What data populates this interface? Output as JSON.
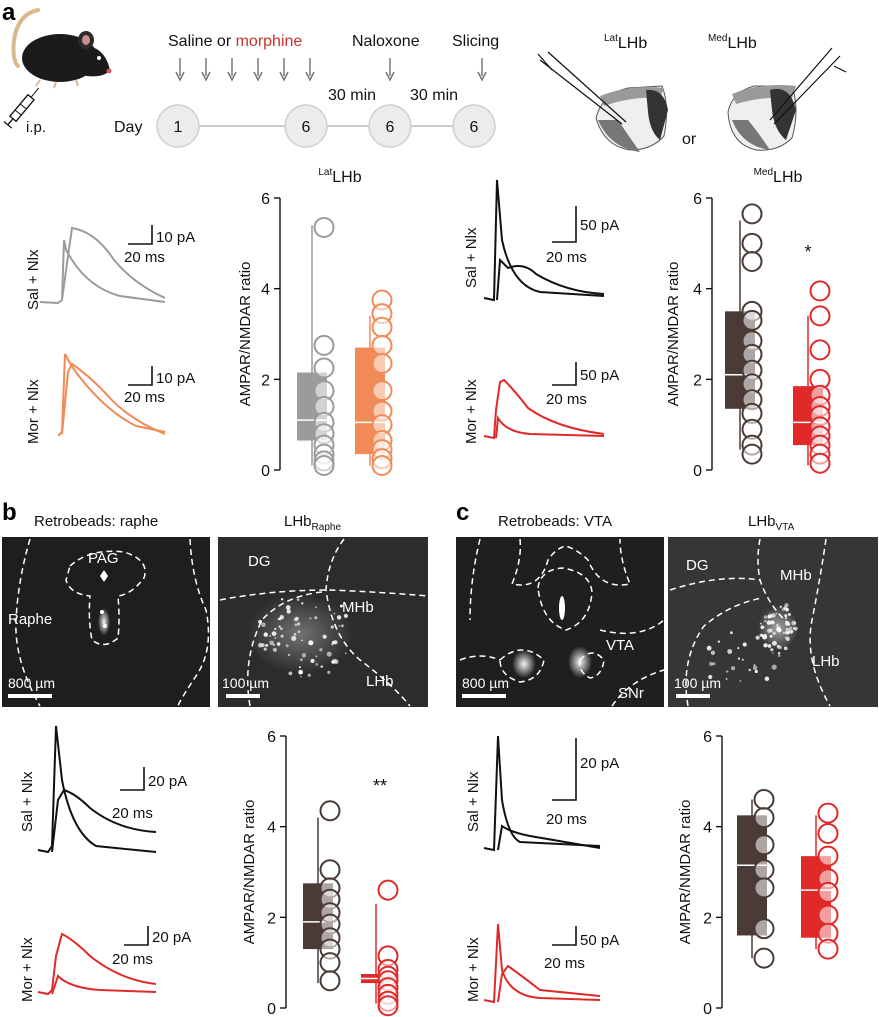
{
  "panels": {
    "a": "a",
    "b": "b",
    "c": "c"
  },
  "colors": {
    "saline": "#9b9b9b",
    "morphine_orange": "#f08a56",
    "saline_dark": "#4a3b36",
    "morphine_red": "#e02a2a",
    "black": "#111111"
  },
  "timeline": {
    "ip": "i.p.",
    "day_label": "Day",
    "saline_or": "Saline or ",
    "morphine": "morphine",
    "naloxone": "Naloxone",
    "slicing": "Slicing",
    "interval1": "30 min",
    "interval2": "30 min",
    "day_nodes": [
      "1",
      "6",
      "6",
      "6"
    ]
  },
  "schematic": {
    "lat_sup": "Lat",
    "lat_main": "LHb",
    "med_sup": "Med",
    "med_main": "LHb",
    "or": "or"
  },
  "traces_a": {
    "sal_lat_label": "Sal + Nlx",
    "mor_lat_label": "Mor + Nlx",
    "sal_med_label": "Sal + Nlx",
    "mor_med_label": "Mor + Nlx",
    "scale_lat_sal_pa": "10 pA",
    "scale_lat_sal_ms": "20 ms",
    "scale_lat_mor_pa": "10 pA",
    "scale_lat_mor_ms": "20 ms",
    "scale_med_sal_pa": "50 pA",
    "scale_med_sal_ms": "20 ms",
    "scale_med_mor_pa": "50 pA",
    "scale_med_mor_ms": "20 ms"
  },
  "images": {
    "b1_title": "Retrobeads: raphe",
    "b2_title_main": "LHb",
    "b2_title_sub": "Raphe",
    "c1_title": "Retrobeads: VTA",
    "c2_title_main": "LHb",
    "c2_title_sub": "VTA",
    "b1": {
      "pag": "PAG",
      "raphe": "Raphe",
      "scale": "800 µm"
    },
    "b2": {
      "dg": "DG",
      "mhb": "MHb",
      "lhb": "LHb",
      "scale": "100 µm"
    },
    "c1": {
      "vta": "VTA",
      "snr": "SNr",
      "scale": "800 µm"
    },
    "c2": {
      "dg": "DG",
      "mhb": "MHb",
      "lhb": "LHb",
      "scale": "100 µm"
    }
  },
  "traces_bc": {
    "b_sal_label": "Sal + Nlx",
    "b_mor_label": "Mor + Nlx",
    "c_sal_label": "Sal + Nlx",
    "c_mor_label": "Mor + Nlx",
    "b_sal_pa": "20 pA",
    "b_sal_ms": "20 ms",
    "b_mor_pa": "20 pA",
    "b_mor_ms": "20 ms",
    "c_sal_pa": "20 pA",
    "c_sal_ms": "20 ms",
    "c_mor_pa": "50 pA",
    "c_mor_ms": "20 ms"
  },
  "chart_data": [
    {
      "type": "box-scatter",
      "title_sup": "Lat",
      "title_main": "LHb",
      "ylabel": "AMPAR/NMDAR ratio",
      "ylim": [
        0,
        6
      ],
      "yticks": [
        "0",
        "2",
        "4",
        "6"
      ],
      "significance": "",
      "series": [
        {
          "color": "#9b9b9b",
          "box": {
            "min": 0.1,
            "q1": 0.65,
            "median": 1.1,
            "q3": 2.15,
            "max": 5.4
          },
          "points": [
            5.35,
            2.75,
            2.25,
            1.75,
            1.4,
            1.05,
            0.8,
            0.55,
            0.35,
            0.2,
            0.1
          ]
        },
        {
          "color": "#f08a56",
          "box": {
            "min": 0.1,
            "q1": 0.35,
            "median": 1.05,
            "q3": 2.7,
            "max": 3.4
          },
          "points": [
            3.75,
            3.45,
            3.15,
            2.75,
            2.35,
            1.75,
            1.3,
            1.0,
            0.65,
            0.45,
            0.25,
            0.1
          ]
        }
      ]
    },
    {
      "type": "box-scatter",
      "title_sup": "Med",
      "title_main": "LHb",
      "ylabel": "AMPAR/NMDAR ratio",
      "ylim": [
        0,
        6
      ],
      "yticks": [
        "0",
        "2",
        "4",
        "6"
      ],
      "significance": "*",
      "series": [
        {
          "color": "#4a3b36",
          "box": {
            "min": 0.45,
            "q1": 1.35,
            "median": 2.1,
            "q3": 3.5,
            "max": 5.5
          },
          "points": [
            5.65,
            5.0,
            4.6,
            3.5,
            3.3,
            2.85,
            2.55,
            2.2,
            1.9,
            1.55,
            1.25,
            0.9,
            0.55,
            0.35
          ]
        },
        {
          "color": "#e02a2a",
          "box": {
            "min": 0.1,
            "q1": 0.55,
            "median": 1.05,
            "q3": 1.85,
            "max": 3.4
          },
          "points": [
            3.95,
            3.4,
            2.65,
            2.0,
            1.65,
            1.4,
            1.2,
            0.95,
            0.75,
            0.55,
            0.35,
            0.15
          ]
        }
      ]
    },
    {
      "type": "box-scatter",
      "title_sup": "",
      "title_main": "",
      "ylabel": "AMPAR/NMDAR ratio",
      "ylim": [
        0,
        6
      ],
      "yticks": [
        "0",
        "2",
        "4",
        "6"
      ],
      "significance": "**",
      "series": [
        {
          "color": "#4a3b36",
          "box": {
            "min": 0.55,
            "q1": 1.3,
            "median": 1.9,
            "q3": 2.75,
            "max": 4.2
          },
          "points": [
            4.35,
            3.05,
            2.65,
            2.4,
            2.1,
            1.85,
            1.55,
            1.3,
            1.0,
            0.6
          ]
        },
        {
          "color": "#e02a2a",
          "box": {
            "min": 0.1,
            "q1": 0.55,
            "median": 0.65,
            "q3": 0.75,
            "max": 2.3
          },
          "points": [
            2.6,
            1.15,
            0.85,
            0.7,
            0.6,
            0.45,
            0.3,
            0.15,
            0.05
          ]
        }
      ]
    },
    {
      "type": "box-scatter",
      "title_sup": "",
      "title_main": "",
      "ylabel": "AMPAR/NMDAR ratio",
      "ylim": [
        0,
        6
      ],
      "yticks": [
        "0",
        "2",
        "4",
        "6"
      ],
      "significance": "",
      "series": [
        {
          "color": "#4a3b36",
          "box": {
            "min": 1.1,
            "q1": 1.6,
            "median": 3.15,
            "q3": 4.25,
            "max": 4.6
          },
          "points": [
            4.6,
            4.2,
            3.6,
            3.05,
            2.65,
            1.75,
            1.1
          ]
        },
        {
          "color": "#e02a2a",
          "box": {
            "min": 1.3,
            "q1": 1.55,
            "median": 2.6,
            "q3": 3.35,
            "max": 4.25
          },
          "points": [
            4.3,
            3.85,
            3.35,
            2.85,
            2.55,
            2.05,
            1.65,
            1.3
          ]
        }
      ]
    }
  ]
}
